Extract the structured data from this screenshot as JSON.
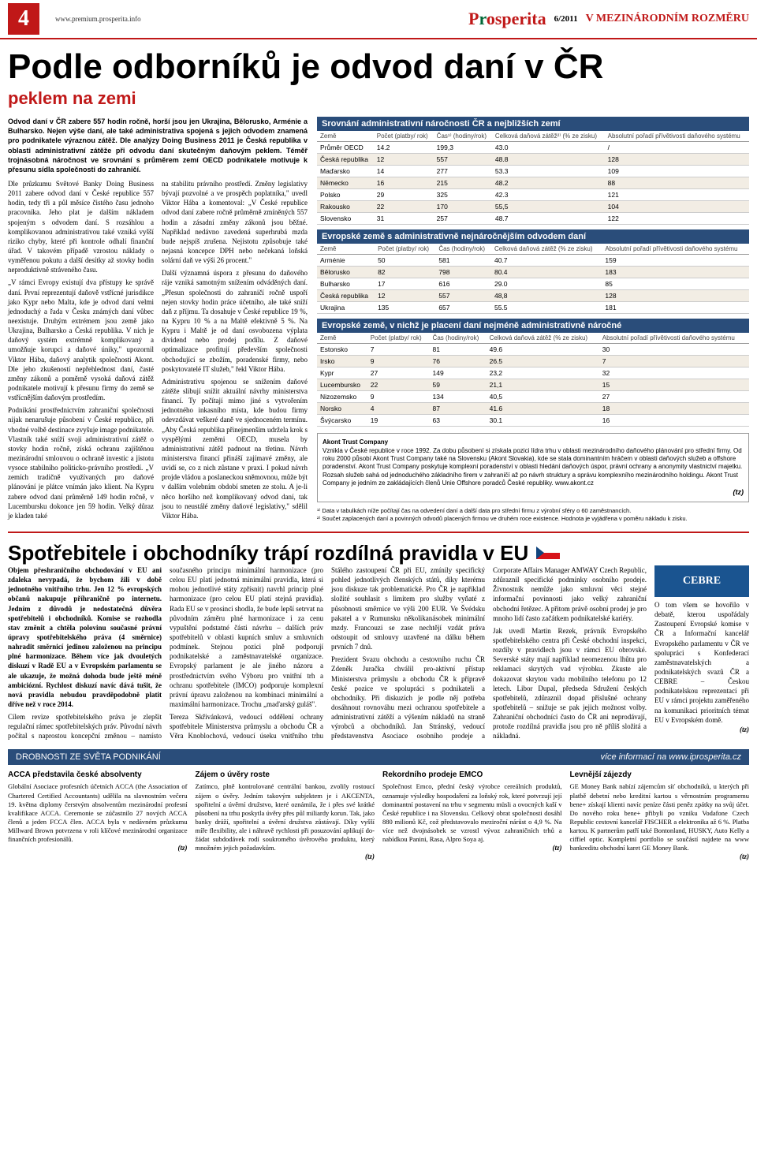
{
  "header": {
    "page_number": "4",
    "url": "www.premium.prosperita.info",
    "logo_main": "Prosperita",
    "issue": "6/2011",
    "section": "V MEZINÁRODNÍM ROZMĚRU"
  },
  "article1": {
    "title": "Podle odborníků je odvod daní v ČR",
    "subtitle": "peklem na zemi",
    "lead": "Odvod daní v ČR zabere 557 hodin ročně, horší jsou jen Ukrajina, Bělorusko, Arménie a Bulharsko. Nejen výše daní, ale také administrativa spojená s jejich odvodem znamená pro podnikatele výraznou zátěž. Dle analýzy Doing Business 2011 je Česká republika v oblasti administrativní zátěže při odvodu daní skutečným daňovým peklem. Téměř trojnásobná náročnost ve srovnání s průměrem zemí OECD podnikatele motivuje k přesunu sídla společnosti do zahraničí.",
    "col1_p1": "Dle průzkumu Světové Banky Doing Business 2011 zabere odvod daní v České republice 557 hodin, tedy tři a půl měsíce čistého času jednoho pracovníka. Jeho plat je dalším nákladem spojeným s odvodem daní. S rozsáhlou a komplikovanou administrativou také vzniká vyšší riziko chyby, které při kontrole odhalí finanční úřad. V takovém případě vzrostou náklady o vyměřenou pokutu a další desítky až stovky hodin neproduktivně stráveného času.",
    "col1_p2": "„V rámci Evropy existují dva přístupy ke správě daní. První reprezentují daňově vstřícné jurisdikce jako Kypr nebo Malta, kde je odvod daní velmi jednoduchý a řada v Česku známých daní vůbec neexistuje. Druhým extrémem jsou země jako Ukrajina, Bulharsko a Česká republika. V nich je daňový systém extrémně komplikovaný a umožňuje korupci a daňové úniky,\" upozornil Viktor Hába, daňový analytik společnosti Akont. Dle jeho zkušeností nepřehlednost daní, časté změny zákonů a poměrně vysoká daňová zátěž podnikatele motivují k přesunu firmy do země se vstřícnějším daňovým prostředím.",
    "col1_p3": "Podnikání prostřednictvím zahraniční společnosti nijak nenarušuje působení v České republice, při vhodné volbě destinace zvyšuje image podnikatele. Vlastník také sníží svoji administrativní zátěž o stovky hodin ročně, získá ochranu zajištěnou mezinárodní smlouvou o ochraně investic a jistotu vysoce stabilního politicko-právního prostředí. „V zemích tradičně využívaných pro daňové plánování je plátce vnímán jako klient. Na Kypru zabere odvod daní průměrně 149 hodin ročně, v Lucembursku dokonce jen 59 hodin. Velký důraz je kladen také",
    "col2_p1": "na stabilitu právního prostředí. Změny legislativy bývají pozvolné a ve prospěch poplatníka,\" uvedl Viktor Hába a komentoval: „V České republice odvod daní zabere ročně průměrně zmíněných 557 hodin a zásadní změny zákonů jsou běžné. Například nedávno zavedená superhrubá mzda bude nejspíš zrušena. Nejistotu způsobuje také nejasná koncepce DPH nebo nečekaná loňská solární daň ve výši 26 procent.\"",
    "col2_p2": "Další významná úspora z přesunu do daňového ráje vzniká samotným snížením odváděných daní. „Přesun společnosti do zahraničí ročně uspoří nejen stovky hodin práce účetního, ale také sníží daň z příjmu. Ta dosahuje v České republice 19 %, na Kypru 10 % a na Maltě efektivně 5 %. Na Kypru i Maltě je od daní osvobozena výplata dividend nebo prodej podílu. Z daňové optimalizace profitují především společnosti obchodující se zbožím, poradenské firmy, nebo poskytovatelé IT služeb,\" řekl Viktor Hába.",
    "col2_p3": "Administrativu spojenou se snížením daňové zátěže slibují snížit aktuální návrhy ministerstva financí. Ty počítají mimo jiné s vytvořením jednotného inkasního místa, kde budou firmy odevzdávat veškeré daně ve sjednoceném termínu. „Aby Česká republika přinejmenším udržela krok s vyspělými zeměmi OECD, musela by administrativní zátěž padnout na třetinu. Návrh ministerstva financí přináší zajímavé změny, ale uvidí se, co z nich zůstane v praxi. I pokud návrh projde vládou a poslaneckou sněmovnou, může být v dalším volebním období smeten ze stolu. A je-li něco horšího než komplikovaný odvod daní, tak jsou to neustálé změny daňové legislativy,\" sdělil Viktor Hába.",
    "sig1": "(tz)"
  },
  "table1": {
    "title": "Srovnání administrativní náročnosti ČR a nejbližších zemí",
    "headers": [
      "Země",
      "Počet (platby/ rok)",
      "Čas¹⁾ (hodiny/rok)",
      "Celková daňová zátěž²⁾ (% ze zisku)",
      "Absolutní pořadí přívětivosti daňového systému"
    ],
    "rows": [
      [
        "Průměr OECD",
        "14.2",
        "199,3",
        "43.0",
        "/"
      ],
      [
        "Česká republika",
        "12",
        "557",
        "48.8",
        "128"
      ],
      [
        "Maďarsko",
        "14",
        "277",
        "53.3",
        "109"
      ],
      [
        "Německo",
        "16",
        "215",
        "48.2",
        "88"
      ],
      [
        "Polsko",
        "29",
        "325",
        "42.3",
        "121"
      ],
      [
        "Rakousko",
        "22",
        "170",
        "55,5",
        "104"
      ],
      [
        "Slovensko",
        "31",
        "257",
        "48.7",
        "122"
      ]
    ]
  },
  "table2": {
    "title": "Evropské země s administrativně nejnáročnějším odvodem daní",
    "headers": [
      "Země",
      "Počet (platby/ rok)",
      "Čas (hodiny/rok)",
      "Celková daňová zátěž (% ze zisku)",
      "Absolutní pořadí přívětivosti daňového systému"
    ],
    "rows": [
      [
        "Arménie",
        "50",
        "581",
        "40.7",
        "159"
      ],
      [
        "Bělorusko",
        "82",
        "798",
        "80.4",
        "183"
      ],
      [
        "Bulharsko",
        "17",
        "616",
        "29.0",
        "85"
      ],
      [
        "Česká republika",
        "12",
        "557",
        "48,8",
        "128"
      ],
      [
        "Ukrajina",
        "135",
        "657",
        "55.5",
        "181"
      ]
    ]
  },
  "table3": {
    "title": "Evropské země, v nichž je placení daní nejméně administrativně náročné",
    "headers": [
      "Země",
      "Počet (platby/ rok)",
      "Čas (hodiny/rok)",
      "Celková daňová zátěž (% ze zisku)",
      "Absolutní pořadí přívětivosti daňového systému"
    ],
    "rows": [
      [
        "Estonsko",
        "7",
        "81",
        "49.6",
        "30"
      ],
      [
        "Irsko",
        "9",
        "76",
        "26.5",
        "7"
      ],
      [
        "Kypr",
        "27",
        "149",
        "23,2",
        "32"
      ],
      [
        "Lucembursko",
        "22",
        "59",
        "21,1",
        "15"
      ],
      [
        "Nizozemsko",
        "9",
        "134",
        "40,5",
        "27"
      ],
      [
        "Norsko",
        "4",
        "87",
        "41.6",
        "18"
      ],
      [
        "Švýcarsko",
        "19",
        "63",
        "30.1",
        "16"
      ]
    ]
  },
  "company_box": {
    "title": "Akont Trust Company",
    "body": "Vznikla v České republice v roce 1992. Za dobu působení si získala pozici lídra trhu v oblasti mezinárodního daňového plánování pro střední firmy. Od roku 2000 působí Akont Trust Company také na Slovensku (Akont Slovakia), kde se stala dominantním hráčem v oblasti daňových služeb a offshore poradenství.\nAkont Trust Company poskytuje komplexní poradenství v oblasti hledání daňových úspor, právní ochrany a anonymity vlastnictví majetku. Rozsah služeb sahá od jednoduchého základního firem v zahraničí až po návrh struktury a správu komplexního mezinárodního holdingu. Akont Trust Company je jedním ze zakládajících členů Unie Offshore poradců České republiky. www.akont.cz",
    "sig": "(tz)"
  },
  "footnotes": {
    "f1": "¹⁾ Data v tabulkách níže počítají čas na odvedení daní a další data pro střední firmu z výrobní sféry o 60 zaměstnancích.",
    "f2": "²⁾ Součet zaplacených daní a povinných odvodů placených firmou ve druhém roce existence. Hodnota je vyjádřena v poměru nákladu k zisku."
  },
  "article2": {
    "title": "Spotřebitele i obchodníky trápí rozdílná pravidla v EU",
    "lead": "Objem přeshraničního obchodování v EU ani zdaleka nevypadá, že bychom žili v době jednotného vnitřního trhu. Jen 12 % evropských občanů nakupuje příhraničně po internetu. Jedním z důvodů je nedostatečná důvěra spotřebitelů i obchodníků. Komise se rozhodla stav změnit a chtěla polovinu současné právní úpravy spotřebitelského práva (4 směrnice) nahradit směrnicí jedinou založenou na principu plné harmonizace. Během více jak dvouletých diskuzí v Radě EU a v Evropském parlamentu se ale ukazuje, že možná dohoda bude ještě méně ambiciózní. Rychlost diskuzí navíc dává tušit, že nová pravidla nebudou pravděpodobně platit dříve než v roce 2014.",
    "p1": "Cílem revize spotřebitelského práva je zlepšit regulační rámec spotřebitelských práv. Původní návrh počítal s naprostou koncepční změnou – namísto současného principu minimální harmonizace (pro celou EU platí jednotná minimální pravidla, která si mohou jednotlivé státy zpřísnit) navrhl princip plné harmonizace (pro celou EU platí stejná pravidla). Rada EU se v prosinci shodla, že bude lepší setrvat na původním záměru plné harmonizace i za cenu vypuštění podstatné části návrhu – dalších práv spotřebitelů v oblasti kupních smluv a smluvních podmínek. Stejnou pozici plně podporují podnikatelské a zaměstnavatelské organizace. Evropský parlament je ale jiného názoru a prostřednictvím svého Výboru pro vnitřní trh a ochranu spotřebitele (IMCO) podporuje komplexní právní úpravu založenou na kombinaci minimální a maximální harmonizace. Trochu „maďarský guláš\".",
    "p2": "Tereza Skřivánková, vedoucí oddělení ochrany spotřebitele Ministerstva průmyslu a obchodu ČR a Věra Knoblochová, vedoucí úseku vnitřního trhu Stálého zastoupení ČR při EU, zmínily specifický pohled jednotlivých členských států, díky kterému jsou diskuze tak problematické. Pro ČR je například složité souhlasit s limitem pro služby vyňaté z působnosti směrnice ve výši 200 EUR. Ve Švédsku pakatel a v Rumunsku několikanásobek minimální mzdy. Francouzi se zase nechtějí vzdát práva odstoupit od smlouvy uzavřené na dálku během prvních 7 dnů.",
    "p3": "Prezident Svazu obchodu a cestovního ruchu ČR Zdeněk Juračka chválil pro-aktivní přístup Ministerstva průmyslu a obchodu ČR k přípravě české pozice ve spolupráci s podnikateli a obchodníky. Při diskuzích je podle něj potřeba dosáhnout rovnováhu mezi ochranou spotřebitele a administrativní zátěží a výšením nákladů na straně výrobců a obchodníků. Jan Stránský, vedoucí představenstva Asociace osobního prodeje a Corporate Affairs Manager AMWAY Czech Republic, zdůraznil specifické podmínky osobního prodeje. Živnostník nemůže jako smluvní věci stejné informační povinnosti jako velký zahraniční obchodní řetězec. A přitom právě osobní prodej je pro mnoho lidí často začátkem podnikatelské kariéry.",
    "p4": "Jak uvedl Martin Rezek, právník Evropského spotřebitelského centra při České obchodní inspekci, rozdíly v pravidlech jsou v rámci EU obrovské. Severské státy mají například neomezenou lhůtu pro reklamaci skrytých vad výrobku. Zkuste ale dokazovat skrytou vadu mobilního telefonu po 12 letech. Libor Dupal, předseda Sdružení českých spotřebitelů, zdůraznil dopad příslušné ochrany spotřebitelů – snižuje se pak jejich možnost volby. Zahraniční obchodníci často do ČR ani neprodávají, protože rozdílná pravidla jsou pro ně příliš složitá a nákladná.",
    "p5": "O tom všem se hovořilo v debatě, kterou uspořádaly Zastoupení Evropské komise v ČR a Informační kancelář Evropského parlamentu v ČR ve spolupráci s Konfederací zaměstnavatelských a podnikatelských svazů ČR a CEBRE – Českou podnikatelskou reprezentací při EU v rámci projektu zaměřeného na komunikaci prioritních témat EU v Evropském domě.",
    "sig": "(tz)",
    "cebre": "CEBRE"
  },
  "strip": {
    "title": "DROBNOSTI ZE SVĚTA PODNIKÁNÍ",
    "more": "více informací na www.iprosperita.cz",
    "items": [
      {
        "title": "ACCA představila české absolventy",
        "body": "Globální Asociace profesních účetních ACCA (the Association of Chartered Certified Accountants) udělila na slavnostním večeru 19. května diplomy čerstvým absolventům mezinárodní profesní kvalifikace ACCA. Ceremonie se zúčastnilo 27 nových ACCA členů a jeden FCCA člen. ACCA byla v nedávném průzkumu Millward Brown potvrzena v roli klíčové mezinárodní organizace finančních profesionálů.",
        "sig": "(tz)"
      },
      {
        "title": "Zájem o úvěry roste",
        "body": "Zatímco, plně kontrolované centrální bankou, zvolily rostoucí zájem o úvěry. Jedním takovým subjektem je i AKCENTA, spořitelní a úvěrní družstvo, které oznámila, že i přes své krátké působení na trhu poskytla úvěry přes půl miliardy korun. Tak, jako banky dráží, spořitelní a úvěrní družstva zůstávají. Díky vyšší míře flexibility, ale i náhravě rychlosti při posuzování aplikují do-žádat subdodávek rodí soukromého úvěrového produktu, který množném jejich požadavkům.",
        "sig": "(tz)"
      },
      {
        "title": "Rekordního prodeje EMCO",
        "body": "Společnost Emco, přední český výrobce cereálních produktů, oznamuje výsledky hospodaření za loňský rok, které potvrzují její dominantní postavení na trhu v segmentu müsli a ovocných kaší v České republice i na Slovensku. Celkový obrat společnosti dosáhl 880 milionů Kč, což představovalo meziroční nárůst o 4,9 %. Na více než dvojnásobek se vzrostl vývoz zahraničních trhů a nabídkou Panini, Rasa, Alpro Soya aj.",
        "sig": "(tz)"
      },
      {
        "title": "Levnější zájezdy",
        "body": "GE Money Bank nabízí zájemcům síť obchodníků, u kterých při platbě debetní nebo kreditní kartou s věrnostním programemu bene+ získají klienti navíc peníze části peněz zpátky na svůj účet. Do nového roku bene+ přibyli po vzniku Vodafone Czech Republic cestovní kancelář FISCHER a elektronika až 6 %. Platba kartou. K partnerům patří také Bontonland, HUSKY, Auto Kelly a ciffiel optic. Kompletní portfolio se součástí najdete na www bankreditu obchodní karet GE Money Bank.",
        "sig": "(tz)"
      }
    ]
  }
}
